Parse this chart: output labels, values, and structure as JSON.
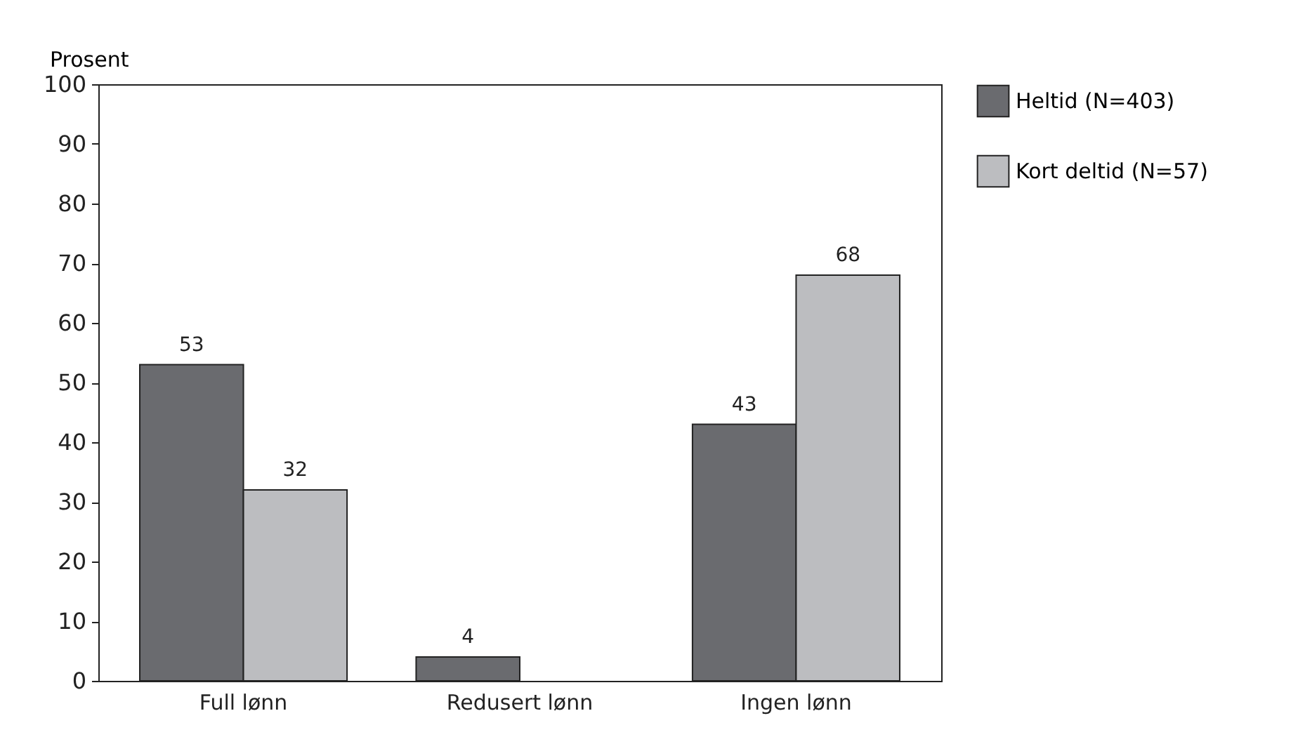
{
  "chart_data": {
    "type": "bar",
    "ylabel": "Prosent",
    "categories": [
      "Full lønn",
      "Redusert lønn",
      "Ingen lønn"
    ],
    "series": [
      {
        "name": "Heltid (N=403)",
        "color": "#6a6b6f",
        "values": [
          53,
          4,
          43
        ]
      },
      {
        "name": "Kort deltid (N=57)",
        "color": "#bcbdc0",
        "values": [
          32,
          null,
          68
        ]
      }
    ],
    "ylim": [
      0,
      100
    ],
    "yticks": [
      0,
      10,
      20,
      30,
      40,
      50,
      60,
      70,
      80,
      90,
      100
    ],
    "data_labels": true,
    "legend": "right",
    "grid": false
  }
}
